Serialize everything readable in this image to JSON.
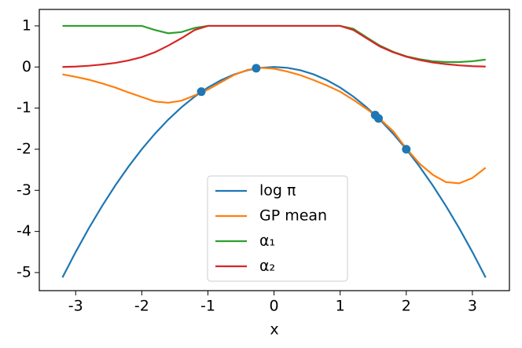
{
  "chart_data": {
    "type": "line",
    "xlabel": "x",
    "x": [
      -3.2,
      -3.0,
      -2.8,
      -2.6,
      -2.4,
      -2.2,
      -2.0,
      -1.8,
      -1.6,
      -1.4,
      -1.2,
      -1.0,
      -0.8,
      -0.6,
      -0.4,
      -0.2,
      0,
      0.2,
      0.4,
      0.6,
      0.8,
      1.0,
      1.2,
      1.4,
      1.6,
      1.8,
      2.0,
      2.2,
      2.4,
      2.6,
      2.8,
      3.0,
      3.2
    ],
    "series": [
      {
        "name": "log π",
        "color": "#1f77b4",
        "values": [
          -5.12,
          -4.5,
          -3.92,
          -3.38,
          -2.88,
          -2.42,
          -2.0,
          -1.62,
          -1.28,
          -0.98,
          -0.72,
          -0.5,
          -0.32,
          -0.18,
          -0.08,
          -0.02,
          0,
          -0.02,
          -0.08,
          -0.18,
          -0.32,
          -0.5,
          -0.72,
          -0.98,
          -1.28,
          -1.62,
          -2.0,
          -2.42,
          -2.88,
          -3.38,
          -3.92,
          -4.5,
          -5.12
        ]
      },
      {
        "name": "GP mean",
        "color": "#ff7f0e",
        "values": [
          -0.18,
          -0.24,
          -0.31,
          -0.4,
          -0.5,
          -0.62,
          -0.73,
          -0.84,
          -0.87,
          -0.82,
          -0.69,
          -0.55,
          -0.37,
          -0.19,
          -0.07,
          -0.02,
          -0.04,
          -0.11,
          -0.2,
          -0.32,
          -0.45,
          -0.6,
          -0.8,
          -1.02,
          -1.26,
          -1.56,
          -1.98,
          -2.35,
          -2.62,
          -2.8,
          -2.83,
          -2.7,
          -2.45
        ]
      },
      {
        "name": "α₁",
        "color": "#2ca02c",
        "values": [
          1,
          1,
          1,
          1,
          1,
          1,
          1,
          0.9,
          0.82,
          0.85,
          0.95,
          1,
          1,
          1,
          1,
          1,
          1,
          1,
          1,
          1,
          1,
          1,
          0.93,
          0.72,
          0.52,
          0.37,
          0.26,
          0.19,
          0.14,
          0.12,
          0.12,
          0.14,
          0.18
        ]
      },
      {
        "name": "α₂",
        "color": "#d62728",
        "values": [
          0,
          0.01,
          0.03,
          0.06,
          0.1,
          0.16,
          0.24,
          0.36,
          0.52,
          0.7,
          0.9,
          1,
          1,
          1,
          1,
          1,
          1,
          1,
          1,
          1,
          1,
          1,
          0.9,
          0.7,
          0.5,
          0.36,
          0.25,
          0.17,
          0.11,
          0.07,
          0.04,
          0.02,
          0.01
        ]
      }
    ],
    "points": {
      "color": "#1f77b4",
      "x": [
        -1.1,
        -0.27,
        1.53,
        1.58,
        2.0
      ],
      "y": [
        -0.6,
        -0.03,
        -1.17,
        -1.25,
        -2.0
      ]
    },
    "xlim": [
      -3.55,
      3.56
    ],
    "ylim": [
      -5.44,
      1.4
    ],
    "xticks": [
      -3,
      -2,
      -1,
      0,
      1,
      2,
      3
    ],
    "yticks": [
      -5,
      -4,
      -3,
      -2,
      -1,
      0,
      1
    ],
    "legend": "lower center"
  }
}
